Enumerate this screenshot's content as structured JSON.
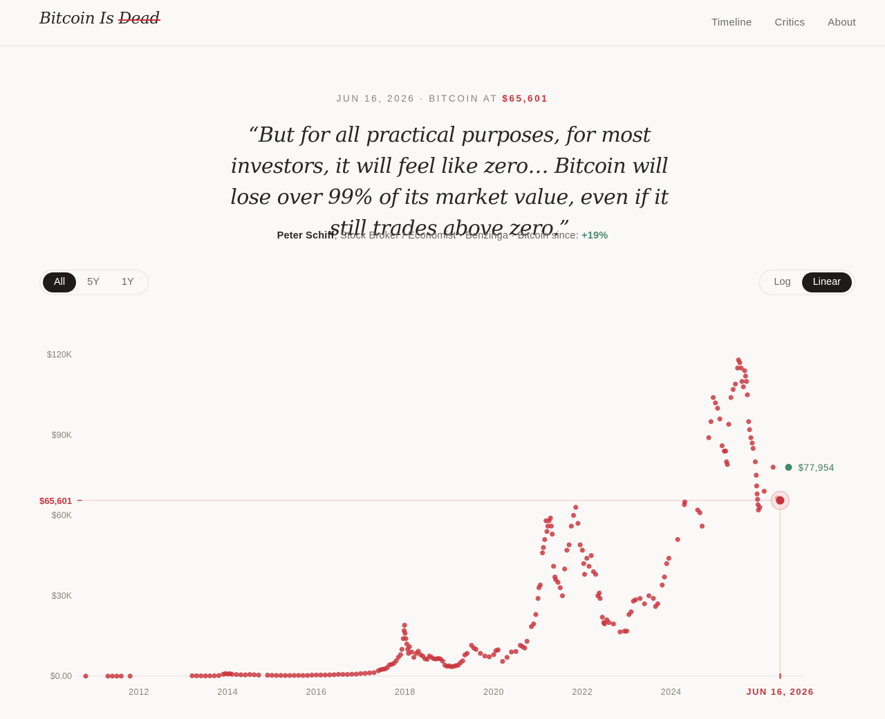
{
  "header": {
    "logo_prefix": "Bitcoin Is ",
    "logo_struck": "Dead",
    "nav": [
      "Timeline",
      "Critics",
      "About"
    ]
  },
  "hero": {
    "date": "JUN 16, 2026",
    "kicker_mid": " · BITCOIN AT ",
    "price": "$65,601",
    "quote": "“But for all practical purposes, for most investors, it will feel like zero… Bitcoin will lose over 99% of its market value, even if it still trades above zero.”",
    "author": "Peter Schiff",
    "attribution": ", Stock Broker / Economist · Benzinga · Bitcoin since: ",
    "gain": "+19%"
  },
  "controls": {
    "ranges": [
      "All",
      "5Y",
      "1Y"
    ],
    "active_range": "All",
    "scales": [
      "Log",
      "Linear"
    ],
    "active_scale": "Linear"
  },
  "colors": {
    "dot": "#c8323a",
    "accent": "#c8323a",
    "current": "#3f8a6c",
    "axis": "#e6e2de"
  },
  "chart_data": {
    "type": "scatter",
    "xlim": [
      2010.8,
      2027.0
    ],
    "ylim": [
      0,
      120000
    ],
    "y_ticks": [
      {
        "value": 0,
        "label": "$0.00"
      },
      {
        "value": 30000,
        "label": "$30K"
      },
      {
        "value": 60000,
        "label": "$60K"
      },
      {
        "value": 90000,
        "label": "$90K"
      },
      {
        "value": 120000,
        "label": "$120K"
      }
    ],
    "x_ticks": [
      2012,
      2014,
      2016,
      2018,
      2020,
      2022,
      2024
    ],
    "highlight": {
      "x": 2026.46,
      "y": 65601,
      "value_label": "$65,601",
      "date_label": "JUN 16, 2026"
    },
    "current": {
      "x": 2026.65,
      "y": 77954,
      "label": "$77,954"
    },
    "points": [
      [
        2010.8,
        0
      ],
      [
        2011.3,
        0
      ],
      [
        2011.4,
        0
      ],
      [
        2011.5,
        0
      ],
      [
        2011.6,
        0
      ],
      [
        2011.8,
        0
      ],
      [
        2013.2,
        150
      ],
      [
        2013.3,
        120
      ],
      [
        2013.4,
        100
      ],
      [
        2013.5,
        90
      ],
      [
        2013.6,
        100
      ],
      [
        2013.7,
        130
      ],
      [
        2013.8,
        200
      ],
      [
        2013.9,
        700
      ],
      [
        2013.95,
        950
      ],
      [
        2014.0,
        800
      ],
      [
        2014.05,
        900
      ],
      [
        2014.1,
        700
      ],
      [
        2014.2,
        600
      ],
      [
        2014.3,
        500
      ],
      [
        2014.4,
        450
      ],
      [
        2014.5,
        600
      ],
      [
        2014.6,
        500
      ],
      [
        2014.7,
        400
      ],
      [
        2014.9,
        350
      ],
      [
        2015.0,
        300
      ],
      [
        2015.1,
        250
      ],
      [
        2015.2,
        250
      ],
      [
        2015.3,
        230
      ],
      [
        2015.4,
        240
      ],
      [
        2015.5,
        260
      ],
      [
        2015.6,
        280
      ],
      [
        2015.7,
        240
      ],
      [
        2015.8,
        270
      ],
      [
        2015.9,
        380
      ],
      [
        2016.0,
        430
      ],
      [
        2016.1,
        410
      ],
      [
        2016.2,
        420
      ],
      [
        2016.3,
        450
      ],
      [
        2016.4,
        530
      ],
      [
        2016.5,
        650
      ],
      [
        2016.6,
        620
      ],
      [
        2016.7,
        610
      ],
      [
        2016.8,
        700
      ],
      [
        2016.9,
        750
      ],
      [
        2017.0,
        950
      ],
      [
        2017.1,
        1050
      ],
      [
        2017.2,
        1200
      ],
      [
        2017.3,
        1300
      ],
      [
        2017.4,
        2000
      ],
      [
        2017.45,
        2400
      ],
      [
        2017.5,
        2600
      ],
      [
        2017.55,
        2700
      ],
      [
        2017.6,
        3200
      ],
      [
        2017.65,
        4200
      ],
      [
        2017.7,
        4400
      ],
      [
        2017.75,
        4800
      ],
      [
        2017.8,
        5700
      ],
      [
        2017.85,
        7000
      ],
      [
        2017.9,
        8000
      ],
      [
        2017.93,
        10000
      ],
      [
        2017.96,
        14000
      ],
      [
        2017.98,
        17000
      ],
      [
        2017.99,
        19000
      ],
      [
        2018.0,
        16000
      ],
      [
        2018.02,
        14000
      ],
      [
        2018.04,
        12000
      ],
      [
        2018.06,
        10000
      ],
      [
        2018.08,
        8500
      ],
      [
        2018.1,
        11000
      ],
      [
        2018.15,
        9000
      ],
      [
        2018.2,
        7000
      ],
      [
        2018.25,
        8500
      ],
      [
        2018.3,
        9300
      ],
      [
        2018.35,
        8000
      ],
      [
        2018.4,
        7500
      ],
      [
        2018.45,
        6500
      ],
      [
        2018.5,
        6300
      ],
      [
        2018.55,
        7500
      ],
      [
        2018.6,
        7000
      ],
      [
        2018.65,
        6500
      ],
      [
        2018.7,
        6400
      ],
      [
        2018.75,
        6600
      ],
      [
        2018.8,
        6400
      ],
      [
        2018.85,
        5600
      ],
      [
        2018.9,
        4100
      ],
      [
        2018.95,
        3700
      ],
      [
        2019.0,
        3800
      ],
      [
        2019.05,
        3500
      ],
      [
        2019.1,
        3700
      ],
      [
        2019.15,
        3900
      ],
      [
        2019.2,
        4100
      ],
      [
        2019.25,
        5000
      ],
      [
        2019.3,
        5700
      ],
      [
        2019.35,
        7900
      ],
      [
        2019.4,
        8500
      ],
      [
        2019.5,
        11500
      ],
      [
        2019.55,
        10500
      ],
      [
        2019.6,
        10000
      ],
      [
        2019.7,
        8500
      ],
      [
        2019.8,
        7500
      ],
      [
        2019.9,
        7200
      ],
      [
        2020.0,
        8000
      ],
      [
        2020.05,
        9500
      ],
      [
        2020.1,
        9800
      ],
      [
        2020.2,
        5500
      ],
      [
        2020.3,
        7000
      ],
      [
        2020.4,
        9000
      ],
      [
        2020.5,
        9200
      ],
      [
        2020.6,
        11500
      ],
      [
        2020.65,
        11000
      ],
      [
        2020.7,
        10500
      ],
      [
        2020.75,
        13000
      ],
      [
        2020.85,
        18500
      ],
      [
        2020.9,
        19500
      ],
      [
        2020.95,
        23000
      ],
      [
        2021.0,
        29000
      ],
      [
        2021.02,
        33000
      ],
      [
        2021.05,
        34000
      ],
      [
        2021.1,
        46000
      ],
      [
        2021.12,
        48000
      ],
      [
        2021.15,
        51000
      ],
      [
        2021.18,
        58000
      ],
      [
        2021.2,
        54000
      ],
      [
        2021.22,
        56000
      ],
      [
        2021.25,
        58000
      ],
      [
        2021.28,
        59000
      ],
      [
        2021.3,
        56000
      ],
      [
        2021.32,
        53000
      ],
      [
        2021.35,
        41000
      ],
      [
        2021.38,
        37000
      ],
      [
        2021.4,
        36000
      ],
      [
        2021.45,
        35000
      ],
      [
        2021.5,
        33000
      ],
      [
        2021.55,
        30000
      ],
      [
        2021.6,
        40000
      ],
      [
        2021.65,
        47000
      ],
      [
        2021.7,
        49000
      ],
      [
        2021.75,
        56000
      ],
      [
        2021.8,
        60000
      ],
      [
        2021.85,
        63000
      ],
      [
        2021.9,
        57000
      ],
      [
        2021.95,
        49000
      ],
      [
        2022.0,
        47000
      ],
      [
        2022.03,
        42000
      ],
      [
        2022.05,
        38000
      ],
      [
        2022.1,
        44000
      ],
      [
        2022.15,
        41000
      ],
      [
        2022.2,
        45000
      ],
      [
        2022.25,
        39000
      ],
      [
        2022.3,
        38000
      ],
      [
        2022.35,
        30000
      ],
      [
        2022.38,
        31000
      ],
      [
        2022.4,
        29000
      ],
      [
        2022.45,
        22000
      ],
      [
        2022.48,
        20000
      ],
      [
        2022.5,
        19500
      ],
      [
        2022.55,
        21000
      ],
      [
        2022.6,
        20000
      ],
      [
        2022.7,
        19500
      ],
      [
        2022.85,
        16500
      ],
      [
        2022.95,
        16800
      ],
      [
        2023.0,
        16800
      ],
      [
        2023.05,
        23000
      ],
      [
        2023.1,
        24000
      ],
      [
        2023.15,
        28000
      ],
      [
        2023.2,
        28500
      ],
      [
        2023.3,
        29000
      ],
      [
        2023.4,
        27000
      ],
      [
        2023.5,
        30000
      ],
      [
        2023.6,
        29000
      ],
      [
        2023.65,
        26000
      ],
      [
        2023.7,
        27000
      ],
      [
        2023.8,
        34000
      ],
      [
        2023.85,
        37000
      ],
      [
        2023.9,
        42000
      ],
      [
        2023.95,
        44000
      ],
      [
        2024.15,
        51000
      ],
      [
        2024.3,
        64000
      ],
      [
        2024.31,
        65000
      ],
      [
        2024.6,
        62000
      ],
      [
        2024.65,
        61000
      ],
      [
        2024.7,
        56000
      ],
      [
        2024.85,
        89000
      ],
      [
        2024.9,
        95000
      ],
      [
        2024.95,
        104000
      ],
      [
        2025.0,
        102000
      ],
      [
        2025.05,
        100000
      ],
      [
        2025.1,
        96000
      ],
      [
        2025.15,
        86000
      ],
      [
        2025.2,
        84000
      ],
      [
        2025.23,
        84000
      ],
      [
        2025.25,
        80000
      ],
      [
        2025.27,
        79000
      ],
      [
        2025.3,
        94000
      ],
      [
        2025.35,
        104000
      ],
      [
        2025.4,
        107000
      ],
      [
        2025.45,
        109000
      ],
      [
        2025.5,
        115000
      ],
      [
        2025.52,
        118000
      ],
      [
        2025.55,
        117000
      ],
      [
        2025.58,
        115000
      ],
      [
        2025.6,
        110000
      ],
      [
        2025.63,
        108000
      ],
      [
        2025.66,
        114000
      ],
      [
        2025.68,
        112000
      ],
      [
        2025.7,
        110000
      ],
      [
        2025.72,
        105000
      ],
      [
        2025.75,
        95000
      ],
      [
        2025.77,
        92000
      ],
      [
        2025.8,
        89000
      ],
      [
        2025.83,
        87000
      ],
      [
        2025.85,
        85000
      ],
      [
        2025.9,
        80000
      ],
      [
        2025.92,
        75000
      ],
      [
        2025.93,
        71000
      ],
      [
        2025.94,
        68000
      ],
      [
        2025.95,
        66000
      ],
      [
        2025.96,
        64000
      ],
      [
        2025.97,
        62000
      ],
      [
        2026.0,
        63000
      ],
      [
        2026.1,
        69000
      ],
      [
        2026.3,
        78000
      ],
      [
        2026.4,
        66500
      ]
    ]
  }
}
